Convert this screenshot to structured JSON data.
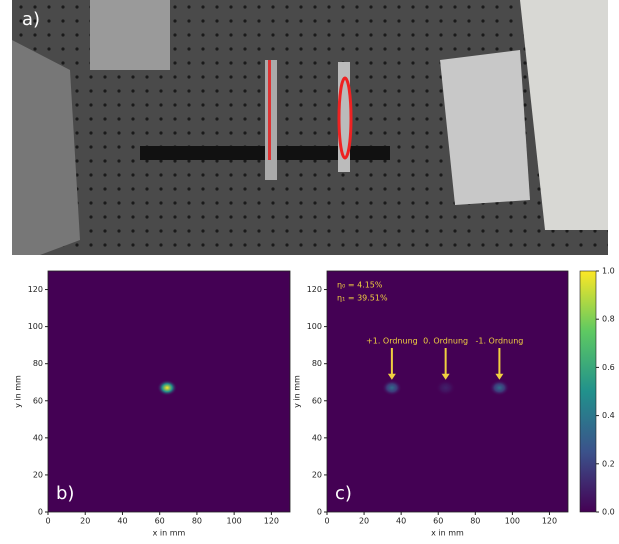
{
  "panel_a": {
    "label": "a)"
  },
  "chart_data": [
    {
      "type": "heatmap",
      "panel_label": "b)",
      "xlabel": "x in mm",
      "ylabel": "y in mm",
      "xlim": [
        0,
        130
      ],
      "ylim": [
        0,
        130
      ],
      "xticks": [
        0,
        20,
        40,
        60,
        80,
        100,
        120
      ],
      "yticks": [
        0,
        20,
        40,
        60,
        80,
        100,
        120
      ],
      "colormap": "viridis",
      "spots": [
        {
          "x": 64,
          "y": 67,
          "peak": 1.0
        }
      ]
    },
    {
      "type": "heatmap",
      "panel_label": "c)",
      "xlabel": "x in mm",
      "ylabel": "y in mm",
      "xlim": [
        0,
        130
      ],
      "ylim": [
        0,
        130
      ],
      "xticks": [
        0,
        20,
        40,
        60,
        80,
        100,
        120
      ],
      "yticks": [
        0,
        20,
        40,
        60,
        80,
        100,
        120
      ],
      "colormap": "viridis",
      "annotations": [
        "η₀ = 4.15%",
        "η₁ = 39.51%"
      ],
      "spots": [
        {
          "x": 35,
          "y": 67,
          "peak": 0.35,
          "label": "+1. Ordnung"
        },
        {
          "x": 64,
          "y": 67,
          "peak": 0.1,
          "label": "0. Ordnung"
        },
        {
          "x": 93,
          "y": 67,
          "peak": 0.35,
          "label": "-1. Ordnung"
        }
      ],
      "colorbar": {
        "lim": [
          0,
          1
        ],
        "ticks": [
          {
            "value": 0,
            "label": "0.0"
          },
          0.2,
          0.4,
          0.6,
          0.8,
          {
            "value": 1,
            "label": "1.0"
          }
        ]
      }
    }
  ]
}
